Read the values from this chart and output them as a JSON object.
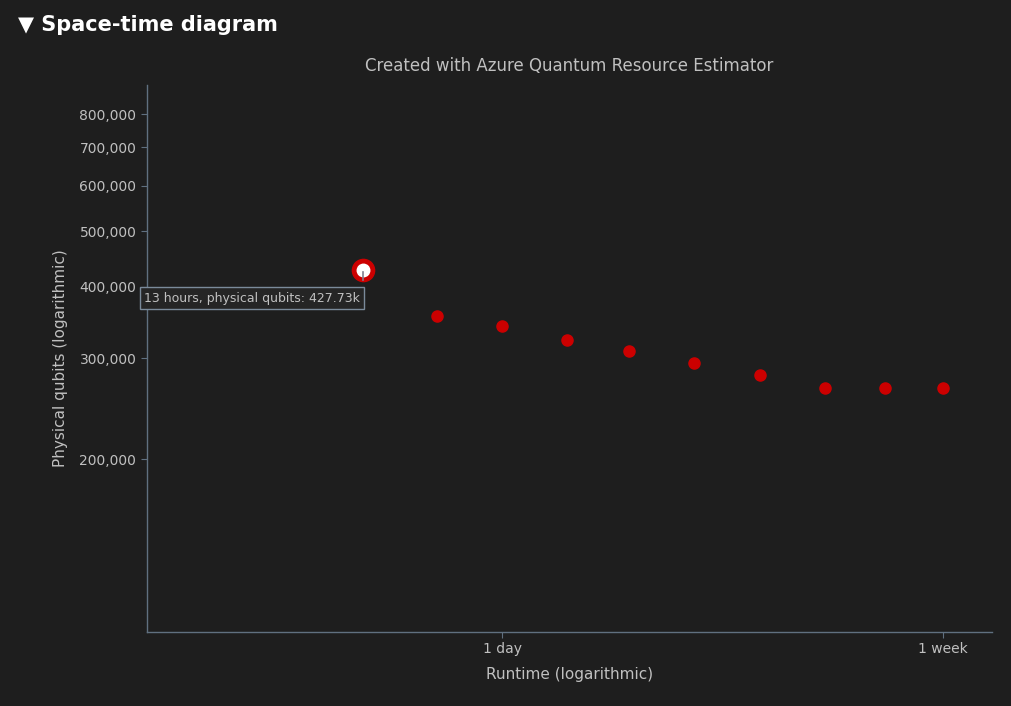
{
  "title": "Created with Azure Quantum Resource Estimator",
  "header_title": "▼ Space-time diagram",
  "xlabel": "Runtime (logarithmic)",
  "ylabel": "Physical qubits (logarithmic)",
  "background_color": "#1e1e1e",
  "header_bg_color": "#2d2d2d",
  "plot_bg_color": "#1e1e1e",
  "text_color": "#c0c0c0",
  "header_text_color": "#ffffff",
  "axis_color": "#607080",
  "dot_color": "#cc0000",
  "highlight_outer_color": "#cc0000",
  "highlight_inner_color": "#ffffff",
  "tooltip_text": "13 hours, physical qubits: 427.73k",
  "tooltip_bg": "#252525",
  "tooltip_border": "#7a8a9a",
  "x_tick_labels": [
    "1 day",
    "1 week"
  ],
  "y_tick_values": [
    200000,
    300000,
    400000,
    500000,
    600000,
    700000,
    800000
  ],
  "x_one_day": 86400,
  "x_one_week": 604800,
  "points_x_seconds": [
    46800,
    64800,
    86400,
    115200,
    151200,
    201600,
    270000,
    360000,
    468000,
    604800
  ],
  "points_y": [
    427730,
    355000,
    341000,
    323000,
    309000,
    294000,
    281000,
    266000,
    266000,
    266000
  ],
  "highlighted_index": 0,
  "ylim": [
    100000,
    900000
  ],
  "xlim_seconds": [
    18000,
    750000
  ],
  "title_fontsize": 12,
  "label_fontsize": 11,
  "tick_fontsize": 10,
  "header_fontsize": 15
}
